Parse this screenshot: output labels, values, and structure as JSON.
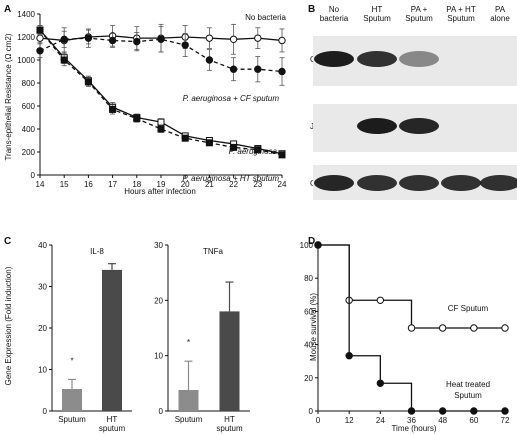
{
  "panels": {
    "a": {
      "letter": "A"
    },
    "b": {
      "letter": "B"
    },
    "c": {
      "letter": "C"
    },
    "d": {
      "letter": "D"
    }
  },
  "chart_data": [
    {
      "id": "A",
      "type": "line",
      "xlabel": "Hours after infection",
      "ylabel": "Trans-epithelial Resistance (Ω cm2)",
      "xlim": [
        14,
        24
      ],
      "ylim": [
        0,
        1400
      ],
      "xticks": [
        14,
        15,
        16,
        17,
        18,
        19,
        20,
        21,
        22,
        23,
        24
      ],
      "yticks": [
        0,
        200,
        400,
        600,
        800,
        1000,
        1200,
        1400
      ],
      "series": [
        {
          "name": "No bacteria",
          "marker": "open-circle",
          "line": "solid",
          "x": [
            14,
            15,
            16,
            17,
            18,
            19,
            20,
            21,
            22,
            23,
            24
          ],
          "y": [
            1190,
            1170,
            1200,
            1210,
            1190,
            1190,
            1200,
            1190,
            1180,
            1190,
            1170
          ],
          "err": [
            40,
            110,
            60,
            90,
            100,
            120,
            100,
            90,
            130,
            90,
            100
          ]
        },
        {
          "name": "P. aeruginosa + CF sputum",
          "marker": "filled-circle",
          "line": "dashed",
          "x": [
            14,
            15,
            16,
            17,
            18,
            19,
            20,
            21,
            22,
            23,
            24
          ],
          "y": [
            1080,
            1180,
            1190,
            1170,
            1160,
            1180,
            1130,
            1000,
            920,
            920,
            900
          ],
          "err": [
            60,
            70,
            80,
            60,
            80,
            110,
            100,
            90,
            100,
            110,
            120
          ]
        },
        {
          "name": "P. aeruginosa",
          "marker": "open-square",
          "line": "solid",
          "x": [
            14,
            15,
            16,
            17,
            18,
            19,
            20,
            21,
            22,
            23,
            24
          ],
          "y": [
            1260,
            1020,
            820,
            590,
            500,
            460,
            340,
            300,
            270,
            230,
            185
          ],
          "err": [
            40,
            50,
            40,
            40,
            30,
            30,
            25,
            20,
            20,
            20,
            20
          ]
        },
        {
          "name": "P. aeruginosa + HT sputum",
          "marker": "filled-square",
          "line": "dashed",
          "x": [
            14,
            15,
            16,
            17,
            18,
            19,
            20,
            21,
            22,
            23,
            24
          ],
          "y": [
            1260,
            1000,
            810,
            570,
            490,
            400,
            320,
            280,
            240,
            220,
            175
          ],
          "err": [
            40,
            50,
            40,
            40,
            30,
            30,
            25,
            20,
            20,
            20,
            20
          ]
        }
      ],
      "annotations": {
        "no_bacteria": "No bacteria",
        "pa_cf": "P. aeruginosa + CF sputum",
        "pa": "P. aeruginosa",
        "pa_ht": "P. aeruginosa + HT sputum"
      }
    },
    {
      "id": "B",
      "type": "table",
      "columns": [
        "No bacteria",
        "HT Sputum",
        "PA + Sputum",
        "PA + HT Sputum",
        "PA alone"
      ],
      "rows": [
        "Occludin",
        "JAM-A",
        "GAPDH"
      ],
      "band_intensity": [
        [
          0.95,
          0.85,
          0.45,
          0.0,
          0.0
        ],
        [
          0.0,
          0.95,
          0.9,
          0.0,
          0.0
        ],
        [
          0.9,
          0.85,
          0.85,
          0.85,
          0.85
        ]
      ]
    },
    {
      "id": "C1",
      "type": "bar",
      "title": "IL-8",
      "ylabel": "Gene Expression (Fold induction)",
      "categories": [
        "Sputum",
        "HT sputum"
      ],
      "values": [
        5.3,
        34
      ],
      "err": [
        2.3,
        1.5
      ],
      "ylim": [
        0,
        40
      ],
      "yticks": [
        0,
        10,
        20,
        30,
        40
      ],
      "significance": [
        "*",
        ""
      ],
      "colors": [
        "#8c8c8c",
        "#4a4a4a"
      ]
    },
    {
      "id": "C2",
      "type": "bar",
      "title": "TNFa",
      "categories": [
        "Sputum",
        "HT sputum"
      ],
      "values": [
        3.8,
        18
      ],
      "err": [
        5.2,
        5.3
      ],
      "ylim": [
        0,
        30
      ],
      "yticks": [
        0,
        10,
        20,
        30
      ],
      "significance": [
        "*",
        ""
      ],
      "colors": [
        "#8c8c8c",
        "#4a4a4a"
      ]
    },
    {
      "id": "D",
      "type": "line",
      "xlabel": "Time (hours)",
      "ylabel": "Mouse survival (%)",
      "xlim": [
        0,
        72
      ],
      "ylim": [
        0,
        100
      ],
      "xticks": [
        0,
        12,
        24,
        36,
        48,
        60,
        72
      ],
      "yticks": [
        0,
        20,
        40,
        60,
        80,
        100
      ],
      "series": [
        {
          "name": "CF Sputum",
          "marker": "open-circle",
          "x": [
            0,
            12,
            24,
            36,
            48,
            60,
            72
          ],
          "y": [
            100,
            66.7,
            66.7,
            50,
            50,
            50,
            50
          ]
        },
        {
          "name": "Heat treated Sputum",
          "marker": "filled-circle",
          "x": [
            0,
            12,
            24,
            36,
            48,
            60,
            72
          ],
          "y": [
            100,
            33.3,
            16.7,
            0,
            0,
            0,
            0
          ]
        }
      ],
      "annotations": {
        "cf": "CF Sputum",
        "ht_line1": "Heat treated",
        "ht_line2": "Sputum"
      }
    }
  ]
}
